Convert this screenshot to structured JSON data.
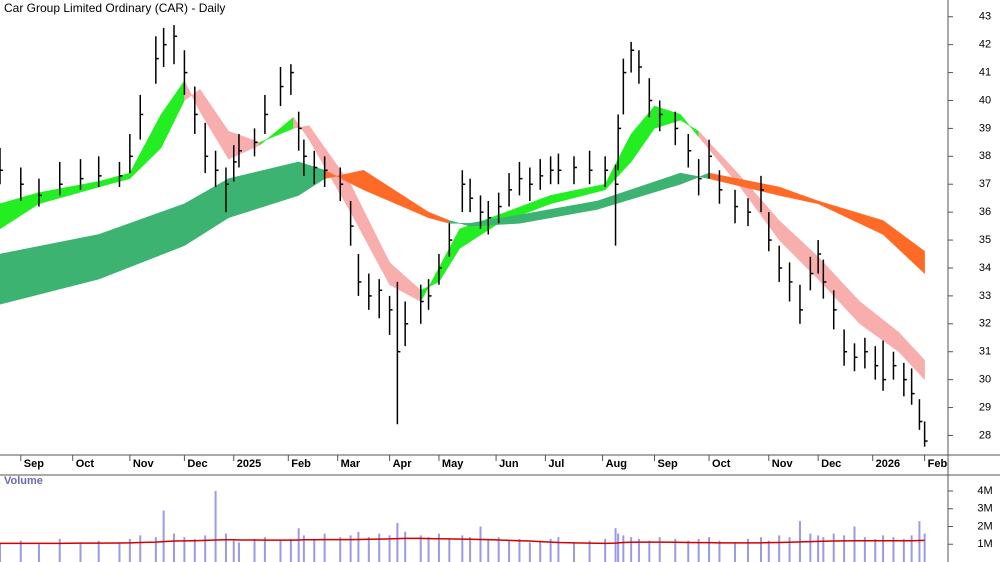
{
  "chart_data": {
    "type": "ohlc",
    "title": "Car Group Limited Ordinary (CAR) - Daily",
    "volume_label": "Volume",
    "xlim": [
      0,
      365
    ],
    "xticks": [
      {
        "value": 8,
        "label": "Sep"
      },
      {
        "value": 28,
        "label": "Oct"
      },
      {
        "value": 50,
        "label": "Nov"
      },
      {
        "value": 71,
        "label": "Dec"
      },
      {
        "value": 90,
        "label": "2025"
      },
      {
        "value": 111,
        "label": "Feb"
      },
      {
        "value": 130,
        "label": "Mar"
      },
      {
        "value": 150,
        "label": "Apr"
      },
      {
        "value": 169,
        "label": "May"
      },
      {
        "value": 191,
        "label": "Jun"
      },
      {
        "value": 210,
        "label": "Jul"
      },
      {
        "value": 232,
        "label": "Aug"
      },
      {
        "value": 252,
        "label": "Sep"
      },
      {
        "value": 273,
        "label": "Oct"
      },
      {
        "value": 296,
        "label": "Nov"
      },
      {
        "value": 315,
        "label": "Dec"
      },
      {
        "value": 336,
        "label": "2026"
      },
      {
        "value": 356,
        "label": "Feb"
      }
    ],
    "ylim": [
      27.3,
      43.6
    ],
    "yticks": [
      28,
      29,
      30,
      31,
      32,
      33,
      34,
      35,
      36,
      37,
      38,
      39,
      40,
      41,
      42,
      43
    ],
    "bar_color": "#000000",
    "x": [
      0,
      8,
      15,
      23,
      31,
      38,
      46,
      50,
      54,
      60,
      63,
      67,
      71,
      75,
      79,
      83,
      87,
      90,
      92,
      98,
      102,
      108,
      112,
      115,
      117,
      121,
      125,
      131,
      135,
      138,
      142,
      146,
      150,
      153,
      156,
      162,
      165,
      169,
      173,
      178,
      181,
      185,
      188,
      192,
      196,
      200,
      204,
      208,
      212,
      215,
      221,
      227,
      233,
      237,
      238,
      240,
      243,
      246,
      250,
      254,
      260,
      265,
      269,
      273,
      277,
      283,
      288,
      293,
      296,
      300,
      304,
      308,
      312,
      315,
      317,
      321,
      325,
      329,
      333,
      337,
      340,
      344,
      348,
      351,
      354,
      356
    ],
    "high": [
      38.3,
      37.6,
      37.2,
      37.8,
      37.9,
      38.0,
      37.8,
      38.8,
      40.2,
      42.3,
      42.6,
      42.7,
      41.8,
      40.5,
      39.2,
      38.2,
      37.6,
      38.4,
      38.8,
      39.0,
      40.2,
      41.2,
      41.3,
      39.6,
      38.6,
      38.2,
      38.0,
      37.6,
      36.4,
      34.5,
      33.8,
      33.6,
      33.0,
      33.5,
      32.8,
      33.4,
      33.6,
      34.5,
      35.6,
      37.5,
      37.2,
      36.6,
      36.4,
      36.7,
      37.4,
      37.8,
      37.6,
      37.9,
      38.0,
      38.1,
      38.0,
      38.2,
      38.0,
      37.7,
      39.5,
      41.5,
      42.1,
      41.8,
      40.8,
      40.0,
      39.6,
      38.8,
      37.9,
      38.6,
      37.5,
      36.8,
      36.5,
      37.3,
      36.0,
      34.8,
      34.2,
      33.4,
      34.4,
      35.0,
      34.3,
      33.2,
      31.8,
      31.3,
      31.5,
      31.2,
      31.4,
      31.0,
      30.6,
      30.4,
      29.3,
      28.5
    ],
    "low": [
      37.0,
      36.4,
      36.2,
      36.6,
      36.8,
      36.9,
      36.9,
      37.4,
      38.6,
      40.6,
      41.2,
      41.3,
      40.2,
      38.8,
      37.4,
      36.9,
      36.0,
      37.1,
      37.6,
      38.0,
      38.8,
      39.8,
      40.2,
      38.2,
      37.3,
      37.0,
      36.9,
      36.4,
      34.8,
      33.0,
      32.5,
      32.2,
      31.6,
      28.4,
      31.2,
      32.0,
      32.5,
      33.4,
      34.4,
      36.0,
      36.0,
      35.4,
      35.2,
      35.6,
      36.2,
      36.6,
      36.4,
      36.8,
      37.0,
      37.0,
      37.0,
      37.0,
      36.9,
      34.8,
      37.5,
      39.5,
      41.0,
      40.6,
      39.4,
      38.9,
      38.4,
      37.6,
      36.6,
      37.2,
      36.3,
      35.6,
      35.5,
      36.0,
      34.6,
      33.5,
      32.8,
      32.0,
      33.2,
      33.8,
      32.9,
      31.8,
      30.5,
      30.3,
      30.4,
      30.0,
      29.6,
      30.0,
      29.4,
      29.1,
      28.2,
      27.6
    ],
    "close": [
      37.5,
      37.0,
      36.6,
      37.0,
      37.2,
      37.3,
      37.3,
      38.0,
      39.5,
      41.5,
      42.0,
      42.3,
      41.0,
      39.5,
      38.0,
      37.5,
      37.0,
      37.8,
      38.2,
      38.5,
      39.5,
      40.5,
      41.0,
      39.0,
      38.0,
      37.6,
      37.5,
      37.0,
      35.5,
      33.5,
      33.0,
      33.2,
      32.5,
      31.0,
      32.0,
      32.8,
      33.0,
      34.0,
      35.0,
      37.0,
      36.5,
      36.0,
      35.8,
      36.2,
      36.8,
      37.2,
      37.0,
      37.3,
      37.5,
      37.5,
      37.6,
      37.5,
      37.5,
      37.0,
      39.0,
      41.0,
      41.8,
      41.2,
      40.0,
      39.5,
      39.0,
      38.2,
      37.2,
      38.0,
      36.8,
      36.2,
      36.0,
      36.8,
      35.0,
      34.0,
      33.5,
      32.5,
      33.8,
      34.5,
      33.5,
      32.5,
      31.0,
      30.8,
      31.0,
      30.5,
      30.0,
      30.5,
      30.0,
      29.5,
      28.5,
      27.8
    ],
    "volume": [
      1100000,
      1200000,
      1000000,
      1300000,
      1100000,
      1200000,
      1100000,
      1300000,
      1500000,
      1400000,
      2900000,
      1600000,
      1400000,
      1300000,
      1500000,
      4000000,
      1600000,
      1200000,
      1100000,
      1300000,
      1400000,
      1200000,
      1300000,
      1900000,
      1500000,
      1300000,
      1600000,
      1400000,
      1500000,
      1700000,
      1400000,
      1600000,
      1500000,
      2200000,
      1700000,
      1500000,
      1400000,
      1600000,
      1300000,
      1500000,
      1400000,
      2000000,
      1300000,
      1400000,
      1200000,
      1300000,
      1100000,
      1200000,
      1300000,
      1400000,
      1100000,
      1200000,
      1300000,
      1900000,
      1600000,
      1500000,
      1400000,
      1300000,
      1200000,
      1400000,
      1300000,
      1200000,
      1300000,
      1400000,
      1200000,
      1100000,
      1300000,
      1400000,
      1200000,
      1500000,
      1400000,
      2300000,
      1600000,
      1500000,
      1400000,
      1600000,
      1500000,
      2000000,
      1400000,
      1300000,
      1500000,
      1400000,
      1300000,
      1500000,
      2300000,
      1600000
    ],
    "volume_ma": [
      1050000,
      1050000,
      1050000,
      1050000,
      1060000,
      1060000,
      1070000,
      1080000,
      1100000,
      1120000,
      1150000,
      1180000,
      1190000,
      1200000,
      1220000,
      1240000,
      1250000,
      1250000,
      1240000,
      1240000,
      1230000,
      1230000,
      1230000,
      1240000,
      1250000,
      1250000,
      1260000,
      1260000,
      1260000,
      1270000,
      1280000,
      1290000,
      1300000,
      1320000,
      1330000,
      1330000,
      1320000,
      1310000,
      1300000,
      1290000,
      1280000,
      1270000,
      1260000,
      1240000,
      1220000,
      1200000,
      1180000,
      1150000,
      1120000,
      1100000,
      1080000,
      1060000,
      1050000,
      1060000,
      1080000,
      1100000,
      1110000,
      1120000,
      1120000,
      1120000,
      1110000,
      1100000,
      1090000,
      1090000,
      1080000,
      1080000,
      1080000,
      1080000,
      1090000,
      1100000,
      1110000,
      1130000,
      1150000,
      1160000,
      1170000,
      1180000,
      1190000,
      1200000,
      1200000,
      1200000,
      1200000,
      1200000,
      1200000,
      1200000,
      1210000,
      1220000
    ],
    "volume_color": "#9a9ae6",
    "volume_ma_color": "#d40000",
    "volume_ylim": [
      0,
      4900000
    ],
    "volume_yticks": [
      {
        "value": 4000000,
        "label": "4M"
      },
      {
        "value": 3000000,
        "label": "3M"
      },
      {
        "value": 2000000,
        "label": "2M"
      },
      {
        "value": 1000000,
        "label": "1M"
      }
    ],
    "ribbons": [
      {
        "name": "short",
        "up_color": "#22ee22",
        "down_color": "#f9aeae",
        "x": [
          0,
          15,
          38,
          50,
          62,
          71,
          77,
          88,
          100,
          113,
          119,
          135,
          150,
          162,
          169,
          177,
          192,
          212,
          233,
          243,
          252,
          262,
          269,
          285,
          300,
          315,
          331,
          346,
          356
        ],
        "fast": [
          36.3,
          36.7,
          37.1,
          37.4,
          39.5,
          40.7,
          39.6,
          37.9,
          38.4,
          39.4,
          38.6,
          36.0,
          33.4,
          32.8,
          34.0,
          35.4,
          35.9,
          36.6,
          37.0,
          38.8,
          39.8,
          39.5,
          38.7,
          36.9,
          35.0,
          33.6,
          32.0,
          31.0,
          30.0
        ],
        "slow": [
          35.4,
          36.3,
          36.9,
          37.2,
          38.3,
          40.0,
          40.4,
          38.9,
          38.5,
          39.0,
          39.1,
          37.0,
          34.2,
          33.2,
          33.5,
          34.7,
          35.6,
          36.3,
          36.8,
          37.8,
          39.0,
          39.3,
          38.9,
          37.3,
          35.7,
          34.4,
          32.8,
          31.7,
          30.7
        ]
      },
      {
        "name": "long",
        "up_color": "#3cb371",
        "down_color": "#ff6a26",
        "x": [
          0,
          38,
          71,
          88,
          115,
          125,
          140,
          165,
          173,
          181,
          200,
          230,
          262,
          273,
          300,
          315,
          340,
          356
        ],
        "fast": [
          34.5,
          35.2,
          36.3,
          37.2,
          37.8,
          37.5,
          36.8,
          35.8,
          35.6,
          35.6,
          35.9,
          36.4,
          37.4,
          37.2,
          36.6,
          36.3,
          35.2,
          33.8
        ],
        "slow": [
          32.7,
          33.6,
          34.8,
          35.8,
          36.6,
          37.2,
          37.5,
          36.0,
          35.7,
          35.5,
          35.6,
          36.1,
          37.0,
          37.4,
          36.9,
          36.4,
          35.7,
          34.6
        ]
      }
    ]
  }
}
